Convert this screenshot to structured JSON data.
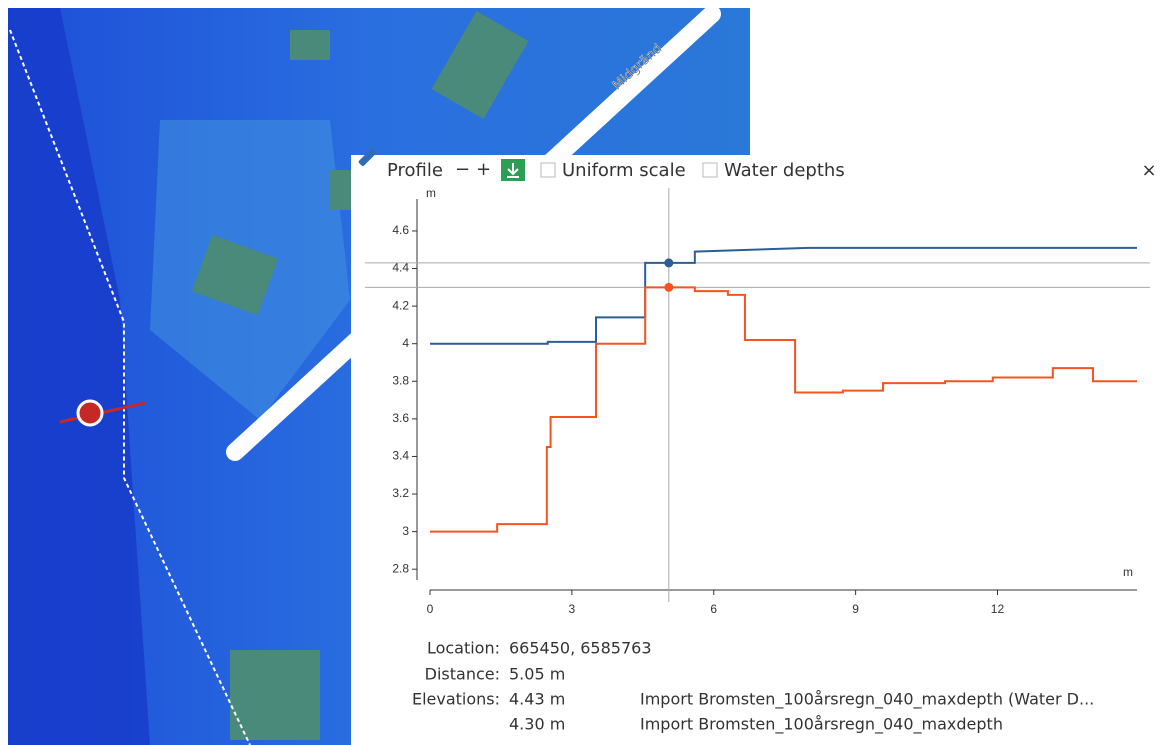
{
  "map": {
    "street_label": "Midgränd"
  },
  "toolbar": {
    "title": "Profile",
    "zoom_out": "−",
    "zoom_in": "+",
    "uniform_scale": "Uniform scale",
    "water_depths": "Water depths",
    "close": "×"
  },
  "chart_data": {
    "type": "line",
    "y_label": "m",
    "x_label": "m",
    "xlim": [
      0,
      14.95
    ],
    "ylim": [
      2.7,
      4.77
    ],
    "xticks": [
      0,
      3,
      6,
      9,
      12
    ],
    "yticks": [
      2.8,
      3,
      3.2,
      3.4,
      3.6,
      3.8,
      4,
      4.2,
      4.4,
      4.6
    ],
    "series": [
      {
        "name": "Import Bromsten_100årsregn_040_maxdepth (Water D...",
        "color": "#2b5f95",
        "x": [
          0,
          2.49,
          2.49,
          3.51,
          3.51,
          4.55,
          4.55,
          5.6,
          5.6,
          8.0,
          14.95
        ],
        "values": [
          4.0,
          4.0,
          4.01,
          4.01,
          4.14,
          4.14,
          4.43,
          4.43,
          4.49,
          4.51,
          4.51
        ]
      },
      {
        "name": "Import Bromsten_100årsregn_040_maxdepth",
        "color": "#f5541f",
        "x": [
          0,
          1.42,
          1.42,
          2.45,
          2.47,
          2.47,
          2.55,
          2.55,
          3.51,
          3.51,
          4.55,
          4.55,
          5.6,
          5.6,
          6.3,
          6.3,
          6.66,
          6.66,
          7.72,
          7.72,
          8.73,
          8.73,
          9.58,
          9.58,
          10.89,
          10.89,
          11.9,
          11.9,
          13.17,
          13.17,
          14.02,
          14.02,
          14.95
        ],
        "values": [
          3.0,
          3.0,
          3.04,
          3.04,
          3.04,
          3.45,
          3.45,
          3.61,
          3.61,
          4.0,
          4.0,
          4.3,
          4.3,
          4.28,
          4.28,
          4.26,
          4.26,
          4.02,
          4.02,
          3.74,
          3.74,
          3.75,
          3.75,
          3.79,
          3.79,
          3.8,
          3.8,
          3.82,
          3.82,
          3.87,
          3.87,
          3.8,
          3.8
        ]
      }
    ],
    "cursor": {
      "x": 5.05,
      "values": [
        4.43,
        4.3
      ]
    }
  },
  "info": {
    "location_label": "Location:",
    "location": "665450, 6585763",
    "distance_label": "Distance:",
    "distance": "5.05 m",
    "elevations_label": "Elevations:",
    "elevations": [
      "4.43 m",
      "4.30 m"
    ]
  }
}
